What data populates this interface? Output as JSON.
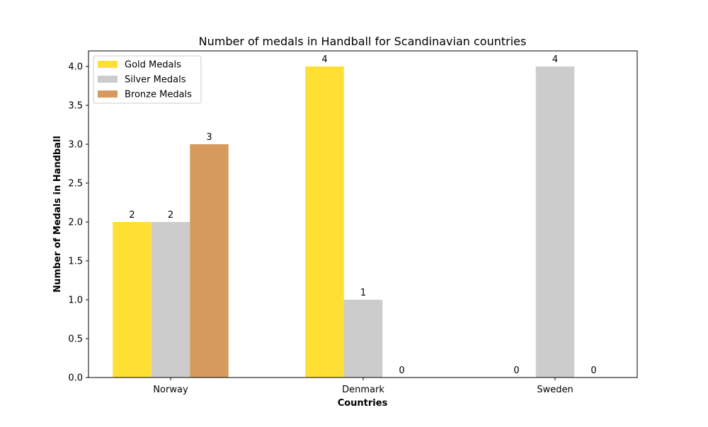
{
  "chart_data": {
    "type": "bar",
    "title": "Number of medals in Handball for Scandinavian countries",
    "xlabel": "Countries",
    "ylabel": "Number of Medals in Handball",
    "categories": [
      "Norway",
      "Denmark",
      "Sweden"
    ],
    "series": [
      {
        "name": "Gold Medals",
        "values": [
          2,
          4,
          0
        ],
        "color": "#FFDF33"
      },
      {
        "name": "Silver Medals",
        "values": [
          2,
          1,
          4
        ],
        "color": "#CCCCCC"
      },
      {
        "name": "Bronze Medals",
        "values": [
          3,
          0,
          0
        ],
        "color": "#D69A5C"
      }
    ],
    "ylim": [
      0,
      4.2
    ],
    "yticks": [
      "0.0",
      "0.5",
      "1.0",
      "1.5",
      "2.0",
      "2.5",
      "3.0",
      "3.5",
      "4.0"
    ],
    "legend_position": "top-left",
    "grid": false
  }
}
